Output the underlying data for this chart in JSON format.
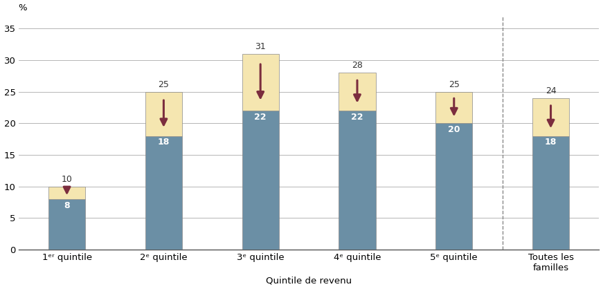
{
  "categories": [
    "1ᵉʳ quintile",
    "2ᵉ quintile",
    "3ᵉ quintile",
    "4ᵉ quintile",
    "5ᵉ quintile",
    "Toutes les\nfamilles"
  ],
  "bottom_values": [
    8,
    18,
    22,
    22,
    20,
    18
  ],
  "top_values": [
    2,
    7,
    9,
    6,
    5,
    6
  ],
  "total_values": [
    10,
    25,
    31,
    28,
    25,
    24
  ],
  "bar_color_bottom": "#6b8fa5",
  "bar_color_top": "#f5e6b0",
  "arrow_color": "#7b2d3e",
  "xlabel": "Quintile de revenu",
  "ylabel": "%",
  "ylim": [
    0,
    37
  ],
  "yticks": [
    0,
    5,
    10,
    15,
    20,
    25,
    30,
    35
  ],
  "bar_width": 0.38,
  "figsize": [
    8.71,
    4.18
  ],
  "dpi": 100,
  "background_color": "#ffffff",
  "grid_color": "#aaaaaa",
  "text_color_white": "#ffffff",
  "text_color_dark": "#333333",
  "x_label_fontsize": 9.5,
  "y_label_fontsize": 9.5,
  "tick_fontsize": 9.5,
  "value_fontsize_inside": 9,
  "value_fontsize_outside": 9,
  "dashed_line_x": 4.5,
  "bar_edge_color": "#888888",
  "bar_edge_lw": 0.5
}
